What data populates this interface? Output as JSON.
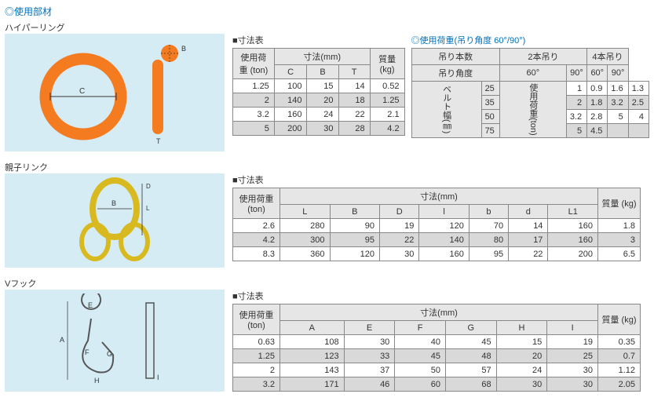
{
  "page_title": "◎使用部材",
  "hyperring": {
    "label": "ハイパーリング",
    "dim_title": "■寸法表",
    "dim_table": {
      "head1": [
        "使用荷重\n(ton)",
        "寸法(mm)",
        "質量\n(kg)"
      ],
      "head2": [
        "C",
        "B",
        "T"
      ],
      "rows": [
        {
          "load": "1.25",
          "c": "100",
          "b": "15",
          "t": "14",
          "mass": "0.52"
        },
        {
          "load": "2",
          "c": "140",
          "b": "20",
          "t": "18",
          "mass": "1.25"
        },
        {
          "load": "3.2",
          "c": "160",
          "b": "24",
          "t": "22",
          "mass": "2.1"
        },
        {
          "load": "5",
          "c": "200",
          "b": "30",
          "t": "28",
          "mass": "4.2"
        }
      ]
    },
    "load_title": "◎使用荷重(吊り角度 60°/90°)",
    "load_table": {
      "head1": [
        "吊り本数",
        "2本吊り",
        "4本吊り"
      ],
      "head2": [
        "吊り角度",
        "60°",
        "90°",
        "60°",
        "90°"
      ],
      "side_label": "ベルト幅(㎜)",
      "side_label2": "使用荷重(ton)",
      "rows": [
        {
          "w": "25",
          "a": "1",
          "b": "0.9",
          "c": "1.6",
          "d": "1.3"
        },
        {
          "w": "35",
          "a": "2",
          "b": "1.8",
          "c": "3.2",
          "d": "2.5"
        },
        {
          "w": "50",
          "a": "3.2",
          "b": "2.8",
          "c": "5",
          "d": "4"
        },
        {
          "w": "75",
          "a": "5",
          "b": "4.5",
          "c": "",
          "d": ""
        }
      ]
    }
  },
  "oyako": {
    "label": "親子リンク",
    "dim_title": "■寸法表",
    "dim_table": {
      "head1": [
        "使用荷重\n(ton)",
        "寸法(mm)",
        "質量\n(kg)"
      ],
      "head2": [
        "L",
        "B",
        "D",
        "l",
        "b",
        "d",
        "L1"
      ],
      "rows": [
        {
          "load": "2.6",
          "L": "280",
          "B": "90",
          "D": "19",
          "l": "120",
          "b": "70",
          "d": "14",
          "L1": "160",
          "mass": "1.8"
        },
        {
          "load": "4.2",
          "L": "300",
          "B": "95",
          "D": "22",
          "l": "140",
          "b": "80",
          "d": "17",
          "L1": "160",
          "mass": "3"
        },
        {
          "load": "8.3",
          "L": "360",
          "B": "120",
          "D": "30",
          "l": "160",
          "b": "95",
          "d": "22",
          "L1": "200",
          "mass": "6.5"
        }
      ]
    }
  },
  "vhook": {
    "label": "Vフック",
    "dim_title": "■寸法表",
    "dim_table": {
      "head1": [
        "使用荷重\n(ton)",
        "寸法(mm)",
        "質量\n(kg)"
      ],
      "head2": [
        "A",
        "E",
        "F",
        "G",
        "H",
        "I"
      ],
      "rows": [
        {
          "load": "0.63",
          "A": "108",
          "E": "30",
          "F": "40",
          "G": "45",
          "H": "15",
          "I": "19",
          "mass": "0.35"
        },
        {
          "load": "1.25",
          "A": "123",
          "E": "33",
          "F": "45",
          "G": "48",
          "H": "20",
          "I": "25",
          "mass": "0.7"
        },
        {
          "load": "2",
          "A": "143",
          "E": "37",
          "F": "50",
          "G": "57",
          "H": "24",
          "I": "30",
          "mass": "1.12"
        },
        {
          "load": "3.2",
          "A": "171",
          "E": "46",
          "F": "60",
          "G": "68",
          "H": "30",
          "I": "30",
          "mass": "2.05"
        }
      ]
    }
  }
}
